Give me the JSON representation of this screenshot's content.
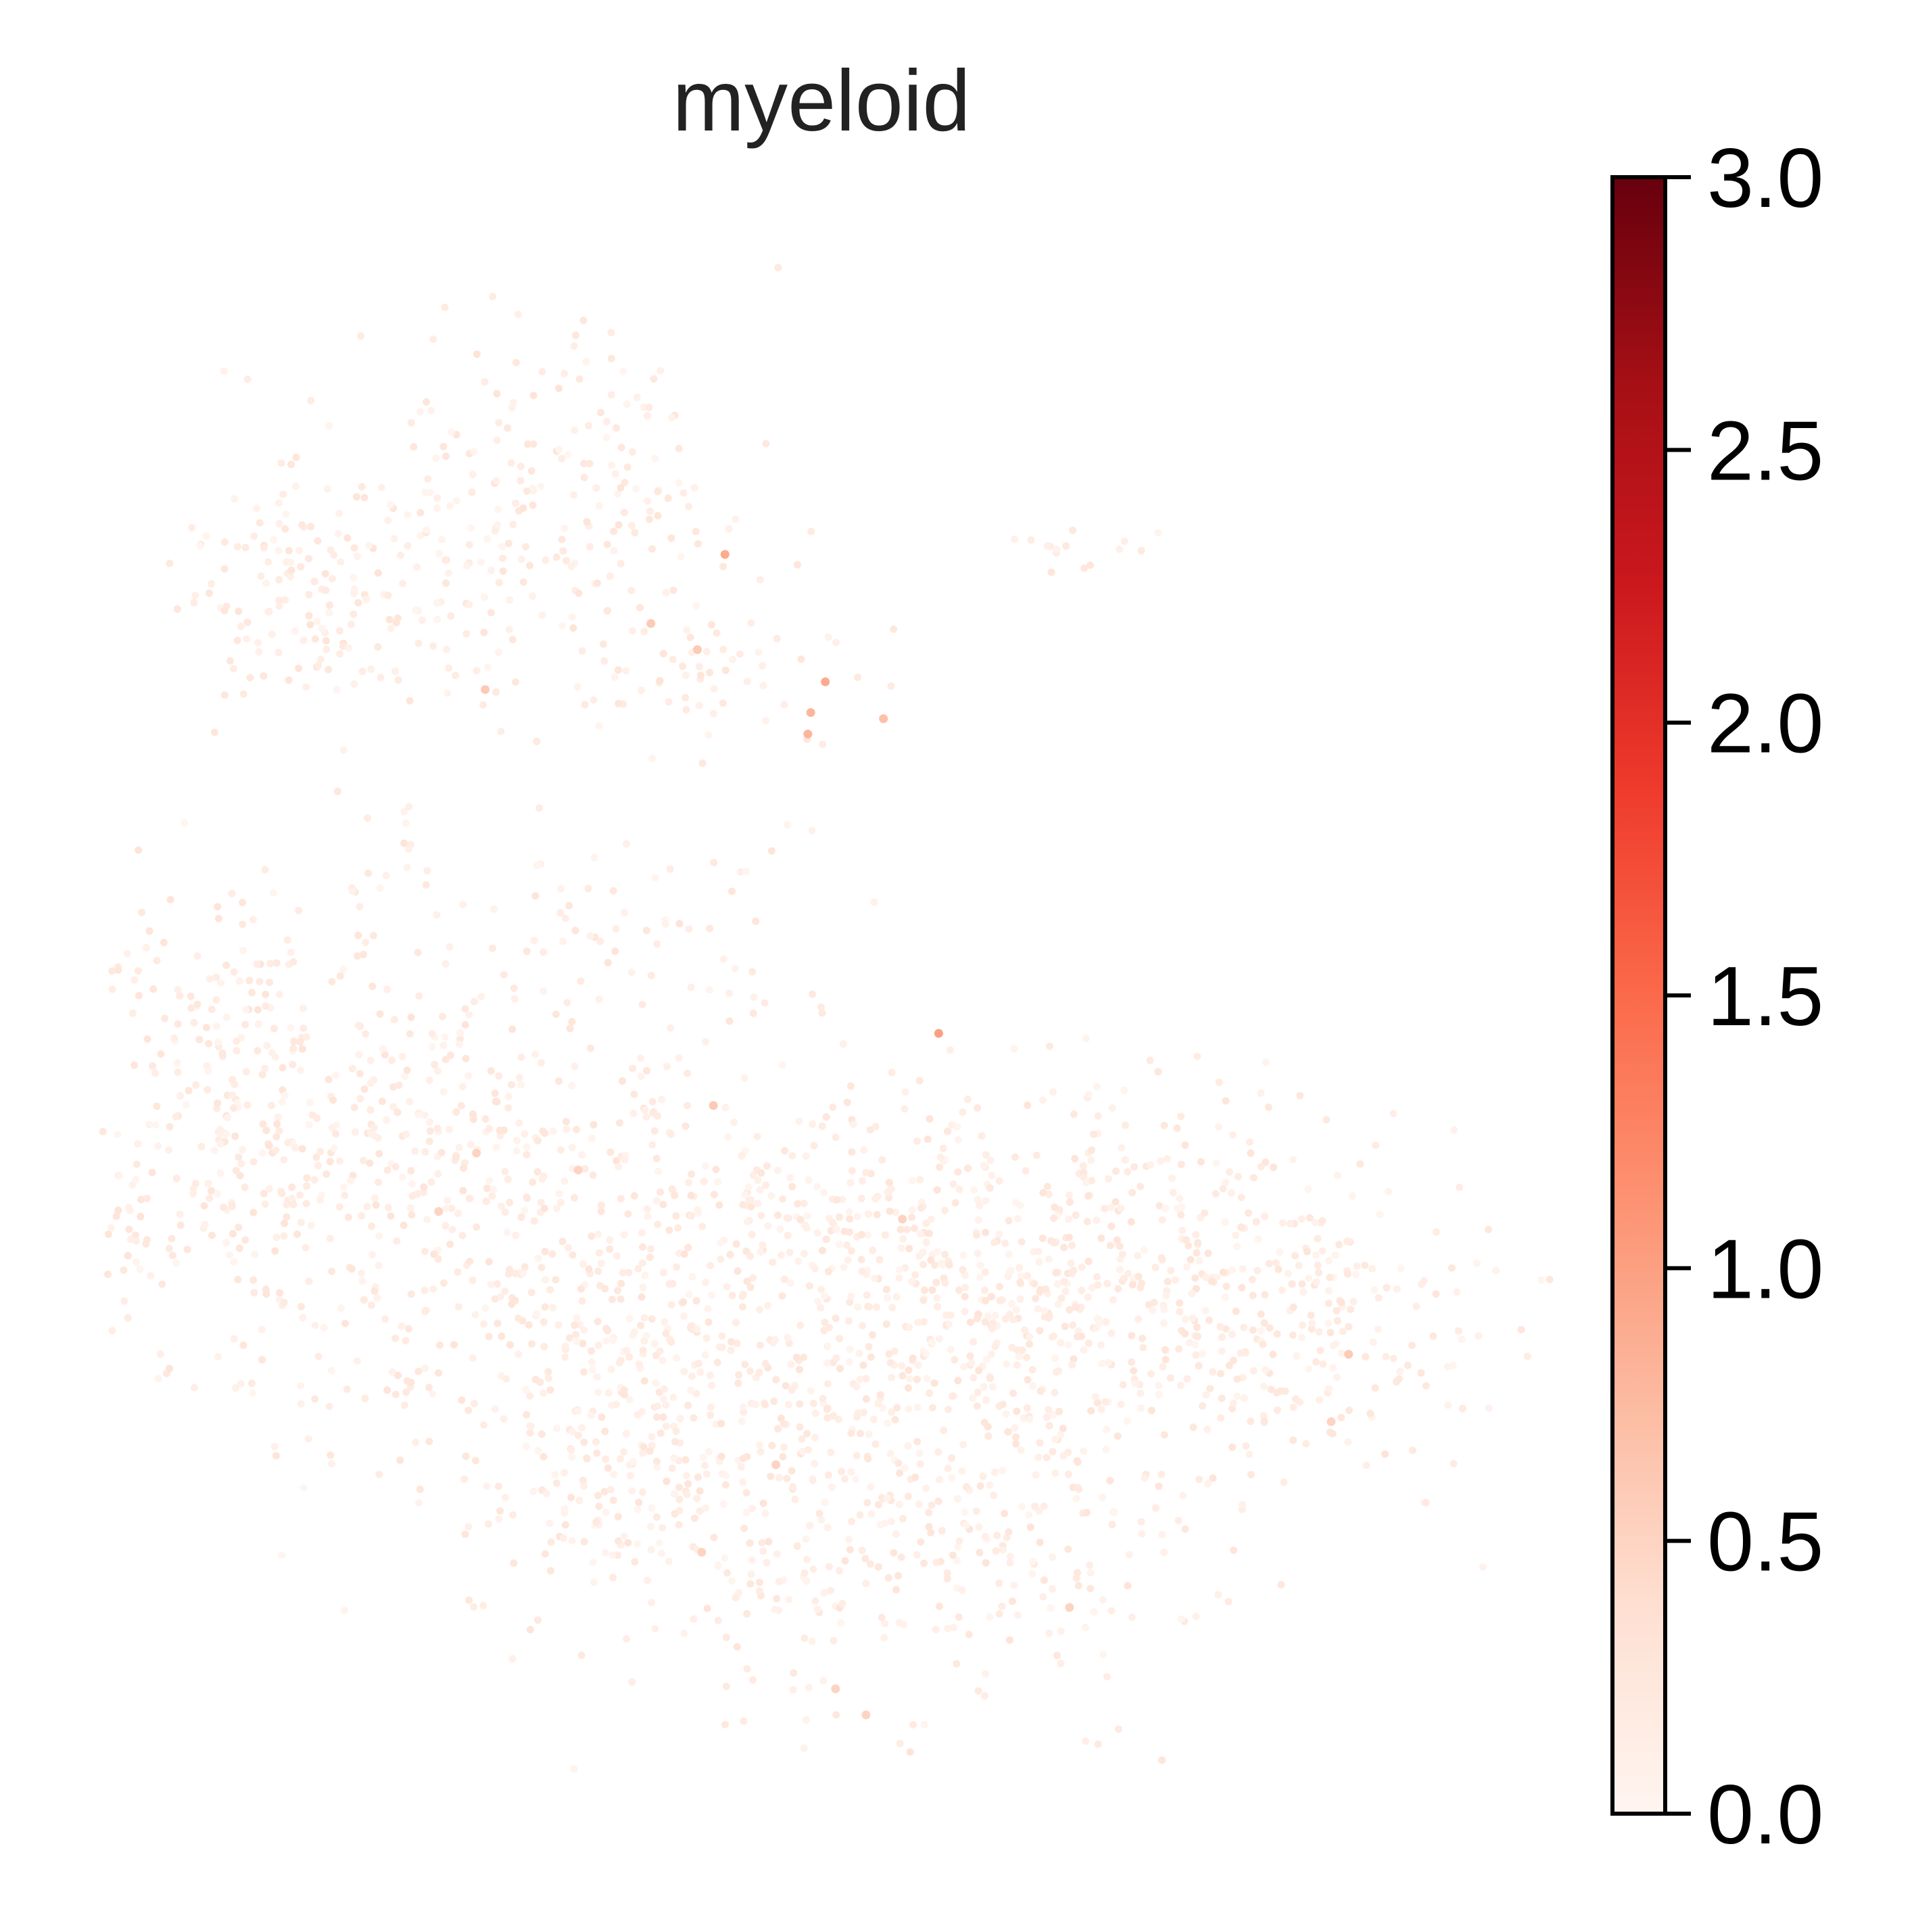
{
  "chart_data": {
    "type": "scatter",
    "title": "myeloid",
    "xlabel": "",
    "ylabel": "",
    "axes_visible": false,
    "colormap": "Reds",
    "colormap_stops": [
      "#fff5f0",
      "#fee0d2",
      "#fcbba1",
      "#fc9272",
      "#fb6a4a",
      "#ef3b2c",
      "#cb181d",
      "#a50f15",
      "#67000d"
    ],
    "colorbar": {
      "vmin": 0.0,
      "vmax": 3.0,
      "tick_values": [
        0.0,
        0.5,
        1.0,
        1.5,
        2.0,
        2.5,
        3.0
      ],
      "tick_labels": [
        "0.0",
        "0.5",
        "1.0",
        "1.5",
        "2.0",
        "2.5",
        "3.0"
      ]
    },
    "xlim": [
      0,
      100
    ],
    "ylim": [
      0,
      100
    ],
    "highlight_points": [
      {
        "x": 42.9,
        "y": 79.3,
        "value": 0.9
      },
      {
        "x": 37.8,
        "y": 74.8,
        "value": 0.6
      },
      {
        "x": 49.8,
        "y": 71.0,
        "value": 0.9
      },
      {
        "x": 48.8,
        "y": 69.0,
        "value": 0.8
      },
      {
        "x": 48.6,
        "y": 67.6,
        "value": 0.8
      },
      {
        "x": 53.8,
        "y": 68.6,
        "value": 0.7
      },
      {
        "x": 41.0,
        "y": 73.1,
        "value": 0.6
      },
      {
        "x": 26.4,
        "y": 70.5,
        "value": 0.6
      },
      {
        "x": 57.6,
        "y": 48.1,
        "value": 1.0
      },
      {
        "x": 42.1,
        "y": 43.4,
        "value": 0.6
      },
      {
        "x": 32.8,
        "y": 39.2,
        "value": 0.5
      },
      {
        "x": 25.8,
        "y": 40.3,
        "value": 0.5
      },
      {
        "x": 85.8,
        "y": 27.2,
        "value": 0.6
      },
      {
        "x": 84.6,
        "y": 22.8,
        "value": 0.5
      },
      {
        "x": 46.4,
        "y": 20.0,
        "value": 0.5
      },
      {
        "x": 66.6,
        "y": 10.7,
        "value": 0.5
      },
      {
        "x": 50.5,
        "y": 5.4,
        "value": 0.5
      },
      {
        "x": 52.6,
        "y": 3.7,
        "value": 0.5
      },
      {
        "x": 41.3,
        "y": 14.3,
        "value": 0.5
      },
      {
        "x": 23.2,
        "y": 36.5,
        "value": 0.5
      },
      {
        "x": 55.1,
        "y": 36.0,
        "value": 0.5
      }
    ],
    "background_values": "most cells ≈ 0.0–0.3"
  }
}
